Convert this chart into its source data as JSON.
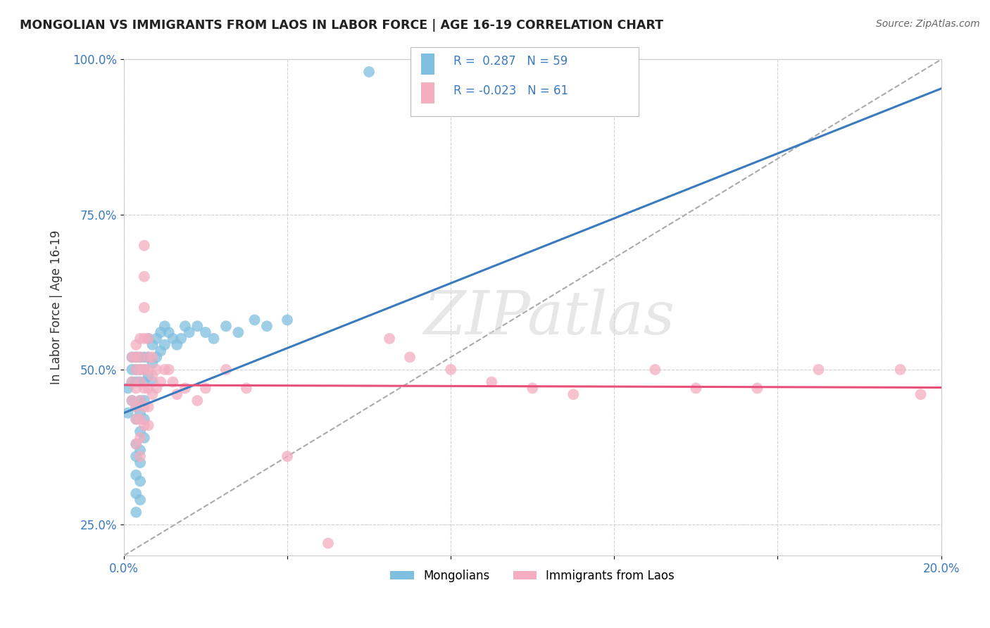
{
  "title": "MONGOLIAN VS IMMIGRANTS FROM LAOS IN LABOR FORCE | AGE 16-19 CORRELATION CHART",
  "source": "Source: ZipAtlas.com",
  "ylabel": "In Labor Force | Age 16-19",
  "xlim": [
    0.0,
    0.2
  ],
  "ylim": [
    0.2,
    1.0
  ],
  "y_ticks": [
    0.25,
    0.5,
    0.75,
    1.0
  ],
  "y_tick_labels": [
    "25.0%",
    "50.0%",
    "75.0%",
    "100.0%"
  ],
  "x_tick_labels_left": "0.0%",
  "x_tick_labels_right": "20.0%",
  "legend_r1": "0.287",
  "legend_n1": "59",
  "legend_r2": "-0.023",
  "legend_n2": "61",
  "color_blue": "#7fbfdf",
  "color_pink": "#f4aec0",
  "color_blue_line": "#3a7abf",
  "color_pink_line": "#e8507a",
  "color_blue_text": "#3a7abf",
  "watermark_text": "ZIPatlas",
  "background_color": "#ffffff",
  "grid_color": "#cccccc",
  "blue_scatter_x": [
    0.001,
    0.001,
    0.002,
    0.002,
    0.002,
    0.002,
    0.003,
    0.003,
    0.003,
    0.003,
    0.003,
    0.003,
    0.003,
    0.003,
    0.003,
    0.003,
    0.004,
    0.004,
    0.004,
    0.004,
    0.004,
    0.004,
    0.004,
    0.004,
    0.004,
    0.004,
    0.005,
    0.005,
    0.005,
    0.005,
    0.005,
    0.005,
    0.006,
    0.006,
    0.006,
    0.007,
    0.007,
    0.007,
    0.008,
    0.008,
    0.009,
    0.009,
    0.01,
    0.01,
    0.011,
    0.012,
    0.013,
    0.014,
    0.015,
    0.016,
    0.018,
    0.02,
    0.022,
    0.025,
    0.028,
    0.032,
    0.035,
    0.04,
    0.06
  ],
  "blue_scatter_y": [
    0.43,
    0.47,
    0.48,
    0.5,
    0.52,
    0.45,
    0.48,
    0.5,
    0.52,
    0.44,
    0.42,
    0.38,
    0.36,
    0.33,
    0.3,
    0.27,
    0.5,
    0.52,
    0.48,
    0.45,
    0.43,
    0.4,
    0.37,
    0.35,
    0.32,
    0.29,
    0.52,
    0.5,
    0.48,
    0.45,
    0.42,
    0.39,
    0.55,
    0.52,
    0.49,
    0.54,
    0.51,
    0.48,
    0.55,
    0.52,
    0.56,
    0.53,
    0.57,
    0.54,
    0.56,
    0.55,
    0.54,
    0.55,
    0.57,
    0.56,
    0.57,
    0.56,
    0.55,
    0.57,
    0.56,
    0.58,
    0.57,
    0.58,
    0.98
  ],
  "pink_scatter_x": [
    0.002,
    0.002,
    0.002,
    0.003,
    0.003,
    0.003,
    0.003,
    0.003,
    0.003,
    0.003,
    0.004,
    0.004,
    0.004,
    0.004,
    0.004,
    0.004,
    0.004,
    0.004,
    0.005,
    0.005,
    0.005,
    0.005,
    0.005,
    0.005,
    0.005,
    0.005,
    0.006,
    0.006,
    0.006,
    0.006,
    0.006,
    0.006,
    0.007,
    0.007,
    0.007,
    0.008,
    0.008,
    0.009,
    0.01,
    0.011,
    0.012,
    0.013,
    0.015,
    0.018,
    0.02,
    0.025,
    0.03,
    0.04,
    0.05,
    0.065,
    0.07,
    0.08,
    0.09,
    0.1,
    0.11,
    0.13,
    0.14,
    0.155,
    0.17,
    0.19,
    0.195
  ],
  "pink_scatter_y": [
    0.52,
    0.48,
    0.45,
    0.54,
    0.52,
    0.5,
    0.47,
    0.44,
    0.42,
    0.38,
    0.55,
    0.52,
    0.5,
    0.48,
    0.45,
    0.42,
    0.39,
    0.36,
    0.7,
    0.65,
    0.6,
    0.55,
    0.5,
    0.47,
    0.44,
    0.41,
    0.55,
    0.52,
    0.5,
    0.47,
    0.44,
    0.41,
    0.52,
    0.49,
    0.46,
    0.5,
    0.47,
    0.48,
    0.5,
    0.5,
    0.48,
    0.46,
    0.47,
    0.45,
    0.47,
    0.5,
    0.47,
    0.36,
    0.22,
    0.55,
    0.52,
    0.5,
    0.48,
    0.47,
    0.46,
    0.5,
    0.47,
    0.47,
    0.5,
    0.5,
    0.46
  ]
}
